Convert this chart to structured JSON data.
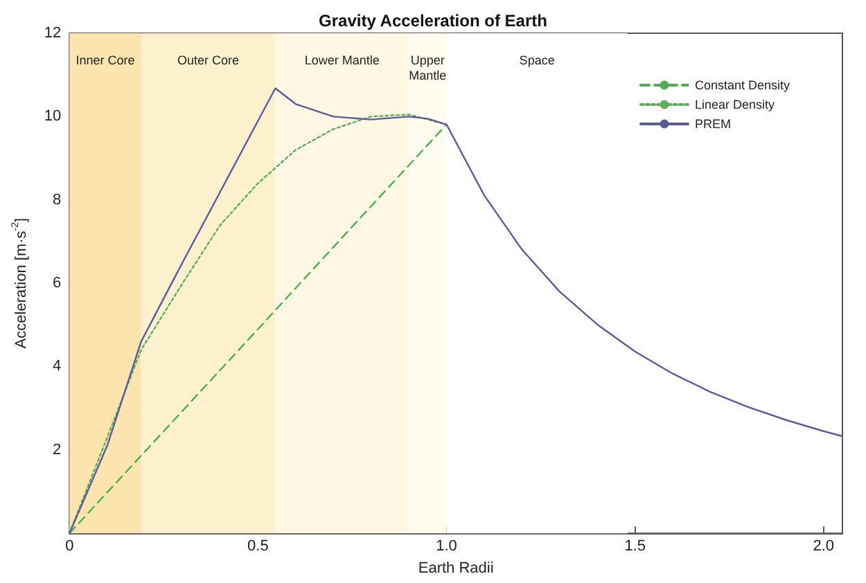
{
  "chart_data": {
    "type": "line",
    "title": "Gravity Acceleration of Earth",
    "xlabel": "Earth Radii",
    "ylabel": "Acceleration [m·s$^{-2}$]",
    "xlim": [
      0,
      2.05
    ],
    "xticks": [
      0,
      0.5,
      {
        "value": 1,
        "label": "1.0"
      },
      1.5,
      {
        "value": 2,
        "label": "2.0"
      }
    ],
    "ylim": [
      0,
      12
    ],
    "yticks": [
      2,
      4,
      6,
      8,
      10,
      12
    ],
    "grid": false,
    "legend": "top right",
    "marker": "none",
    "bands": [
      {
        "axis": "x",
        "from": 0,
        "to": 0.19,
        "label": "Inner Core",
        "color": "#fbe4ad"
      },
      {
        "axis": "x",
        "from": 0.19,
        "to": 0.546,
        "label": "Outer Core",
        "color": "#fdf0cd"
      },
      {
        "axis": "x",
        "from": 0.546,
        "to": 0.9,
        "label": "Lower Mantle",
        "color": "#fef7e3"
      },
      {
        "axis": "x",
        "from": 0.9,
        "to": 1,
        "label": "Upper\nMantle",
        "color": "#fffbef"
      },
      {
        "axis": "x",
        "from": 1,
        "to": 1.48,
        "label": "Space",
        "color": "#ffffff"
      }
    ],
    "series": [
      {
        "name": "Constant Density",
        "color": "#4fae4f",
        "line_style": "dashed",
        "x": [
          0,
          0.25,
          0.5,
          0.75,
          1
        ],
        "values": [
          0,
          2.45,
          4.9,
          7.36,
          9.81
        ]
      },
      {
        "name": "Linear Density",
        "color": "#5fae5f",
        "line_style": "dotted",
        "x": [
          0,
          0.1,
          0.19,
          0.3,
          0.4,
          0.5,
          0.6,
          0.7,
          0.8,
          0.9,
          1
        ],
        "values": [
          0,
          2.3,
          4.4,
          6.0,
          7.4,
          8.4,
          9.2,
          9.7,
          10.0,
          10.05,
          9.81
        ]
      },
      {
        "name": "PREM",
        "color": "#5b5b99",
        "line_style": "solid",
        "x": [
          0,
          0.1,
          0.19,
          0.3,
          0.4,
          0.546,
          0.6,
          0.7,
          0.8,
          0.9,
          0.95,
          1,
          1.1,
          1.2,
          1.3,
          1.4,
          1.5,
          1.6,
          1.7,
          1.8,
          1.9,
          2.0,
          2.05
        ],
        "values": [
          0,
          2.1,
          4.6,
          6.5,
          8.2,
          10.68,
          10.3,
          10.0,
          9.93,
          10.0,
          9.95,
          9.81,
          8.11,
          6.81,
          5.8,
          5.01,
          4.36,
          3.83,
          3.39,
          3.03,
          2.72,
          2.45,
          2.33
        ]
      }
    ]
  }
}
